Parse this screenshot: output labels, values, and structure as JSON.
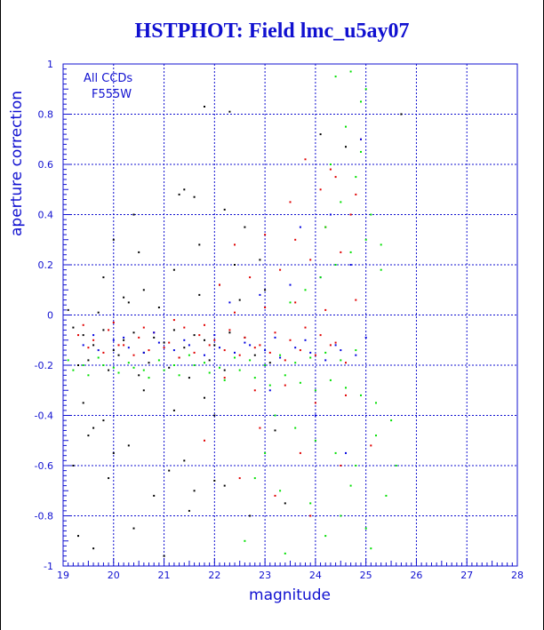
{
  "chart_data": {
    "type": "scatter",
    "title": "HSTPHOT: Field lmc_u5ay07",
    "xlabel": "magnitude",
    "ylabel": "aperture correction",
    "xlim": [
      19,
      28
    ],
    "ylim": [
      -1,
      1
    ],
    "xticks": [
      "19",
      "20",
      "21",
      "22",
      "23",
      "24",
      "25",
      "26",
      "27",
      "28"
    ],
    "yticks": [
      "-1",
      "-0.8",
      "-0.6",
      "-0.4",
      "-0.2",
      "0",
      "0.2",
      "0.4",
      "0.6",
      "0.8",
      "1"
    ],
    "grid": true,
    "annotations": [
      "All CCDs",
      "F555W"
    ],
    "colors": {
      "axis": "#1010d0",
      "black": "#000000",
      "red": "#e00000",
      "blue": "#0000e0",
      "green": "#00e000"
    },
    "series": [
      {
        "color": "black",
        "x": [
          19.2,
          19.4,
          19.6,
          19.8,
          20.0,
          20.2,
          20.4,
          20.6,
          20.8,
          21.0,
          21.2,
          21.4,
          21.6,
          21.8,
          22.0,
          22.3,
          22.6,
          19.3,
          19.5,
          19.9,
          20.1,
          20.5,
          20.7,
          21.1,
          21.3,
          21.5,
          21.9,
          22.2,
          22.8,
          23.1,
          19.1,
          19.7,
          20.3,
          20.9,
          21.7,
          22.1,
          22.5,
          23.0,
          19.4,
          19.8,
          20.6,
          21.2,
          21.8,
          21.3,
          21.4,
          21.6,
          22.2,
          22.4,
          21.8,
          22.3,
          20.2,
          20.6,
          19.5,
          20.0,
          21.1,
          21.6,
          22.0,
          22.7,
          23.4,
          19.3,
          19.6,
          20.4,
          21.0,
          19.2,
          19.9,
          20.8,
          21.5,
          22.2,
          19.6,
          20.3,
          21.4,
          22.0,
          23.2,
          20.0,
          20.5,
          19.8,
          21.7,
          22.6,
          22.9,
          20.4,
          21.2,
          24.6,
          24.1,
          25.7
        ],
        "y": [
          -0.05,
          -0.08,
          -0.12,
          -0.06,
          -0.14,
          -0.1,
          -0.07,
          -0.15,
          -0.09,
          -0.11,
          -0.06,
          -0.13,
          -0.08,
          -0.1,
          -0.12,
          -0.07,
          -0.09,
          -0.2,
          -0.18,
          -0.22,
          -0.16,
          -0.24,
          -0.19,
          -0.21,
          -0.17,
          -0.25,
          -0.18,
          -0.22,
          -0.16,
          -0.19,
          0.02,
          0.01,
          0.05,
          0.03,
          0.08,
          0.12,
          0.06,
          0.1,
          -0.35,
          -0.42,
          -0.3,
          -0.38,
          -0.33,
          0.48,
          0.5,
          0.47,
          0.42,
          0.2,
          0.83,
          0.81,
          0.07,
          0.1,
          -0.48,
          -0.55,
          -0.62,
          -0.7,
          -0.66,
          -0.8,
          -0.75,
          -0.88,
          -0.93,
          -0.85,
          -0.96,
          -0.6,
          -0.65,
          -0.72,
          -0.78,
          -0.68,
          -0.45,
          -0.52,
          -0.58,
          -0.4,
          -0.46,
          0.3,
          0.25,
          0.15,
          0.28,
          0.35,
          0.22,
          0.4,
          0.18,
          0.67,
          0.72,
          0.8
        ]
      },
      {
        "color": "red",
        "x": [
          19.3,
          19.6,
          19.9,
          20.2,
          20.5,
          20.8,
          21.1,
          21.4,
          21.7,
          22.0,
          22.3,
          22.6,
          22.9,
          23.2,
          23.5,
          23.8,
          24.1,
          24.4,
          19.5,
          19.8,
          20.1,
          20.4,
          20.7,
          21.0,
          21.3,
          21.6,
          21.9,
          22.2,
          22.5,
          22.8,
          23.1,
          23.4,
          23.7,
          24.0,
          24.3,
          24.6,
          19.4,
          20.0,
          20.6,
          21.2,
          21.8,
          22.4,
          23.0,
          23.6,
          24.2,
          24.8,
          22.1,
          22.7,
          23.3,
          23.9,
          24.5,
          22.4,
          23.0,
          23.6,
          24.2,
          24.7,
          22.2,
          22.8,
          23.4,
          24.0,
          24.6,
          23.5,
          24.1,
          24.4,
          24.8,
          23.8,
          24.3,
          24.9,
          22.9,
          23.7,
          24.5,
          25.1,
          21.8,
          22.5,
          23.2,
          23.9
        ],
        "y": [
          -0.08,
          -0.1,
          -0.06,
          -0.12,
          -0.09,
          -0.07,
          -0.11,
          -0.05,
          -0.08,
          -0.1,
          -0.06,
          -0.09,
          -0.12,
          -0.07,
          -0.1,
          -0.05,
          -0.08,
          -0.11,
          -0.13,
          -0.15,
          -0.12,
          -0.16,
          -0.14,
          -0.13,
          -0.17,
          -0.15,
          -0.12,
          -0.14,
          -0.16,
          -0.13,
          -0.15,
          -0.18,
          -0.14,
          -0.16,
          -0.12,
          -0.19,
          -0.04,
          -0.03,
          -0.05,
          -0.02,
          -0.04,
          0.01,
          0.03,
          0.05,
          0.02,
          0.06,
          0.12,
          0.15,
          0.18,
          0.22,
          0.25,
          0.28,
          0.32,
          0.3,
          0.35,
          0.4,
          -0.25,
          -0.3,
          -0.28,
          -0.35,
          -0.32,
          0.45,
          0.5,
          0.55,
          0.48,
          0.62,
          0.58,
          0.7,
          -0.45,
          -0.55,
          -0.6,
          -0.52,
          -0.5,
          -0.65,
          -0.72,
          -0.8
        ]
      },
      {
        "color": "blue",
        "x": [
          19.4,
          19.7,
          20.0,
          20.3,
          20.6,
          20.9,
          21.2,
          21.5,
          21.8,
          22.1,
          22.4,
          22.7,
          23.0,
          23.3,
          23.6,
          23.9,
          24.2,
          24.5,
          24.8,
          19.6,
          20.2,
          20.8,
          21.4,
          22.0,
          22.6,
          23.2,
          23.8,
          24.4,
          25.0,
          22.3,
          22.9,
          23.5,
          24.1,
          24.7,
          23.7,
          24.3,
          24.9,
          23.1,
          24.0,
          24.6
        ],
        "y": [
          -0.12,
          -0.14,
          -0.1,
          -0.13,
          -0.15,
          -0.11,
          -0.14,
          -0.12,
          -0.16,
          -0.13,
          -0.15,
          -0.12,
          -0.14,
          -0.17,
          -0.13,
          -0.15,
          -0.18,
          -0.14,
          -0.16,
          -0.08,
          -0.09,
          -0.07,
          -0.1,
          -0.08,
          -0.11,
          -0.09,
          -0.1,
          -0.12,
          -0.09,
          0.05,
          0.08,
          0.12,
          0.15,
          0.2,
          0.35,
          0.4,
          0.7,
          -0.3,
          -0.4,
          -0.55
        ]
      },
      {
        "color": "green",
        "x": [
          19.1,
          19.4,
          19.7,
          20.0,
          20.3,
          20.6,
          20.9,
          21.2,
          21.5,
          21.8,
          22.1,
          22.4,
          22.7,
          23.0,
          23.3,
          23.6,
          23.9,
          24.2,
          24.5,
          24.8,
          19.2,
          19.5,
          19.8,
          20.1,
          20.4,
          20.7,
          21.0,
          21.3,
          21.6,
          21.9,
          22.2,
          22.5,
          22.8,
          23.1,
          23.4,
          23.7,
          24.0,
          24.3,
          24.6,
          24.9,
          25.2,
          23.5,
          23.8,
          24.1,
          24.4,
          24.7,
          25.0,
          25.3,
          24.2,
          24.5,
          24.8,
          25.1,
          24.6,
          24.9,
          24.4,
          24.7,
          25.0,
          23.2,
          23.6,
          24.0,
          24.4,
          24.8,
          25.2,
          25.5,
          22.8,
          23.3,
          23.9,
          24.5,
          25.0,
          25.4,
          22.6,
          23.4,
          24.2,
          25.1,
          25.6,
          24.3,
          24.9,
          23.0,
          24.7,
          25.3
        ],
        "y": [
          -0.18,
          -0.2,
          -0.17,
          -0.21,
          -0.19,
          -0.22,
          -0.18,
          -0.2,
          -0.16,
          -0.19,
          -0.21,
          -0.17,
          -0.18,
          -0.2,
          -0.16,
          -0.19,
          -0.17,
          -0.15,
          -0.18,
          -0.14,
          -0.22,
          -0.24,
          -0.2,
          -0.23,
          -0.21,
          -0.25,
          -0.22,
          -0.24,
          -0.2,
          -0.23,
          -0.26,
          -0.22,
          -0.25,
          -0.28,
          -0.24,
          -0.27,
          -0.3,
          -0.26,
          -0.29,
          -0.32,
          -0.35,
          0.05,
          0.1,
          0.15,
          0.2,
          0.25,
          0.3,
          0.18,
          0.35,
          0.45,
          0.55,
          0.4,
          0.75,
          0.85,
          0.95,
          0.97,
          0.9,
          -0.4,
          -0.45,
          -0.5,
          -0.55,
          -0.6,
          -0.48,
          -0.42,
          -0.65,
          -0.7,
          -0.75,
          -0.8,
          -0.85,
          -0.72,
          -0.9,
          -0.95,
          -0.88,
          -0.93,
          -0.6,
          0.6,
          0.65,
          -0.55,
          -0.68,
          0.28
        ]
      }
    ]
  }
}
